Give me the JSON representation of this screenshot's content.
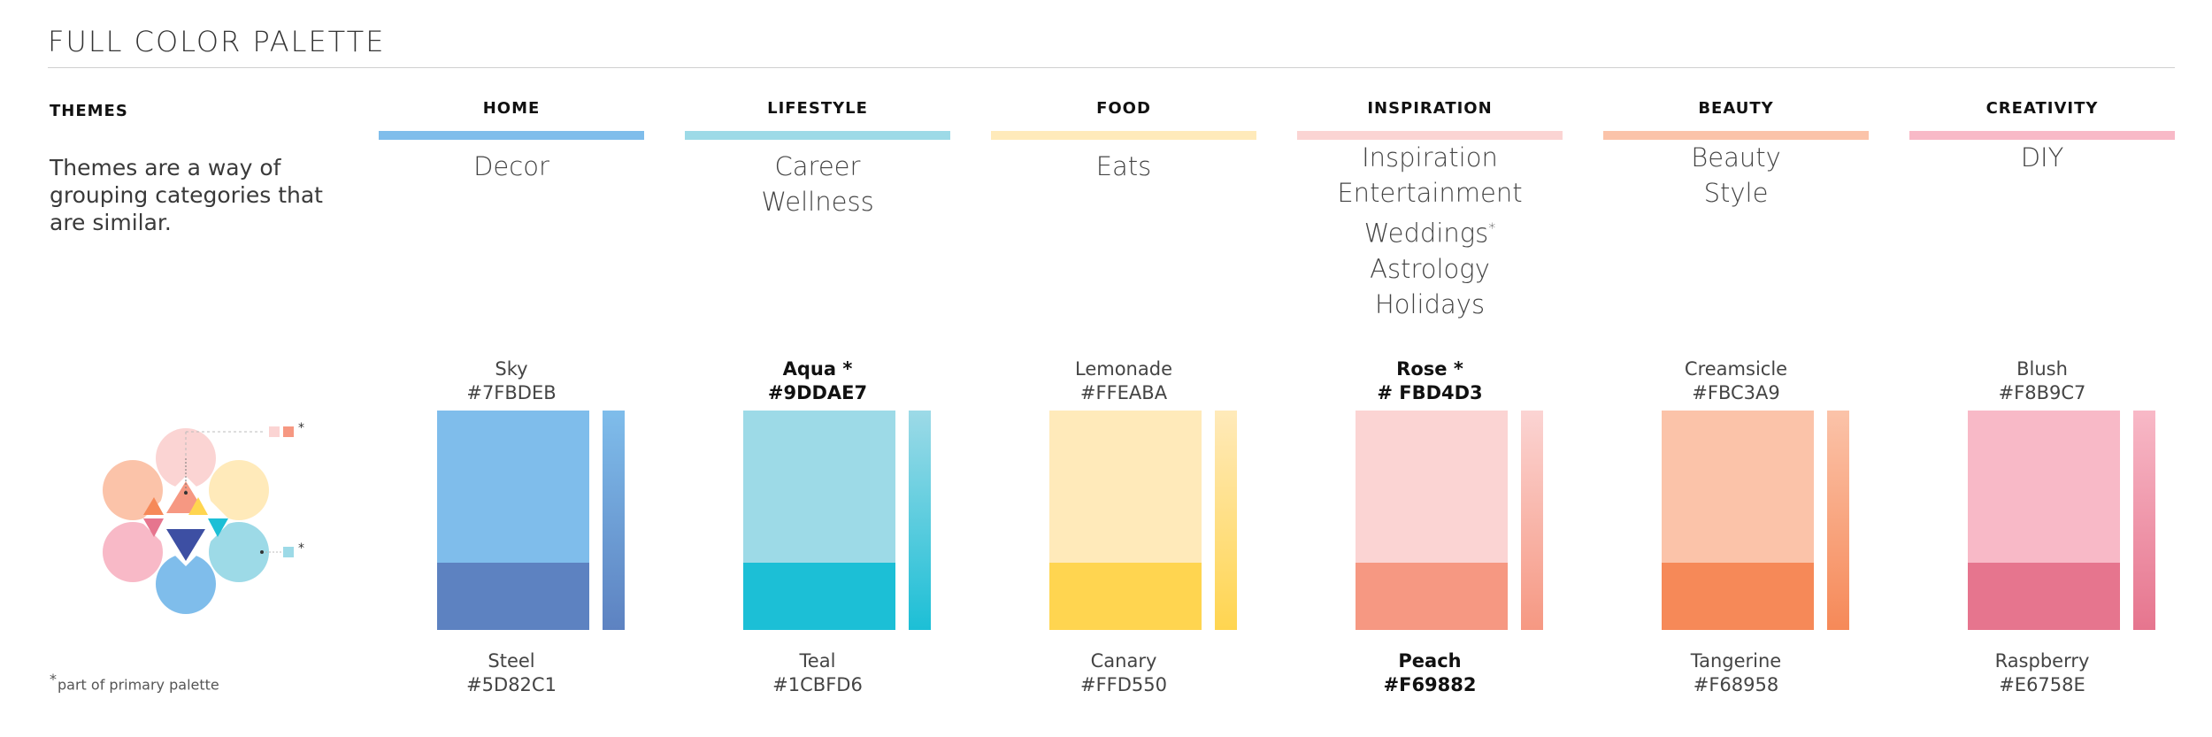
{
  "header": {
    "title": "FULL COLOR PALETTE"
  },
  "themes_intro": {
    "label": "THEMES",
    "description": "Themes are a way of grouping categories that are similar."
  },
  "footnote": {
    "star": "*",
    "text": "part of primary palette"
  },
  "emblem": {
    "icon": "color-wheel-icon",
    "markers": [
      "*",
      "*"
    ]
  },
  "themes": [
    {
      "id": "home",
      "name": "HOME",
      "bar_color": "#7FBDEB",
      "categories": [
        "Decor"
      ],
      "primary": {
        "name": "Sky",
        "hex": "#7FBDEB",
        "star": ""
      },
      "secondary": {
        "name": "Steel",
        "hex": "#5D82C1"
      }
    },
    {
      "id": "lifestyle",
      "name": "LIFESTYLE",
      "bar_color": "#9DDAE7",
      "categories": [
        "Career",
        "Wellness"
      ],
      "primary": {
        "name": "Aqua",
        "hex": "#9DDAE7",
        "star": "*"
      },
      "secondary": {
        "name": "Teal",
        "hex": "#1CBFD6"
      }
    },
    {
      "id": "food",
      "name": "FOOD",
      "bar_color": "#FFEABA",
      "categories": [
        "Eats"
      ],
      "primary": {
        "name": "Lemonade",
        "hex": "#FFEABA",
        "star": ""
      },
      "secondary": {
        "name": "Canary",
        "hex": "#FFD550"
      }
    },
    {
      "id": "inspiration",
      "name": "INSPIRATION",
      "bar_color": "#FBD4D3",
      "categories": [
        "Inspiration",
        "Entertainment",
        "Weddings",
        "Astrology",
        "Holidays"
      ],
      "primary": {
        "name": "Rose",
        "hex": "# FBD4D3",
        "star": "*"
      },
      "secondary": {
        "name": "Peach",
        "hex": "#F69882"
      }
    },
    {
      "id": "beauty",
      "name": "BEAUTY",
      "bar_color": "#FBC3A9",
      "categories": [
        "Beauty",
        "Style"
      ],
      "primary": {
        "name": "Creamsicle",
        "hex": "#FBC3A9",
        "star": ""
      },
      "secondary": {
        "name": "Tangerine",
        "hex": "#F68958"
      }
    },
    {
      "id": "creativity",
      "name": "CREATIVITY",
      "bar_color": "#F8B9C7",
      "categories": [
        "DIY"
      ],
      "primary": {
        "name": "Blush",
        "hex": "#F8B9C7",
        "star": ""
      },
      "secondary": {
        "name": "Raspberry",
        "hex": "#E6758E"
      }
    }
  ]
}
